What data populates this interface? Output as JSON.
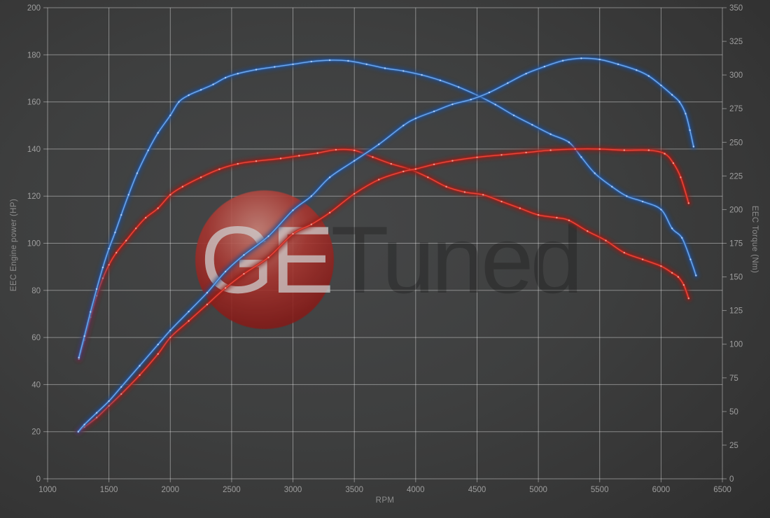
{
  "chart_data": {
    "type": "line",
    "title": "",
    "xlabel": "RPM",
    "ylabel_left": "EEC Engine power (HP)",
    "ylabel_right": "EEC Torque (Nm)",
    "xlim": [
      1000,
      6500
    ],
    "ylim_left": [
      0,
      200
    ],
    "ylim_right": [
      0,
      350
    ],
    "x_ticks": [
      1000,
      1500,
      2000,
      2500,
      3000,
      3500,
      4000,
      4500,
      5000,
      5500,
      6000,
      6500
    ],
    "y_left_ticks": [
      0,
      20,
      40,
      60,
      80,
      100,
      120,
      140,
      160,
      180,
      200
    ],
    "y_right_ticks": [
      0,
      25,
      50,
      75,
      100,
      125,
      150,
      175,
      200,
      225,
      250,
      275,
      300,
      325,
      350
    ],
    "grid": true,
    "legend": "none",
    "grid_color": "rgba(255,255,255,0.40)",
    "series": [
      {
        "name": "torque-red",
        "axis": "right",
        "unit": "Nm",
        "colors": {
          "core": "#e8483b",
          "mid": "#b2211c",
          "glow": "#8c1a16",
          "dot": "#f2aba0"
        },
        "points": [
          [
            1255,
            89
          ],
          [
            1300,
            103
          ],
          [
            1350,
            120
          ],
          [
            1400,
            136
          ],
          [
            1450,
            149
          ],
          [
            1500,
            159
          ],
          [
            1560,
            168
          ],
          [
            1640,
            177
          ],
          [
            1720,
            186
          ],
          [
            1800,
            194
          ],
          [
            1900,
            201
          ],
          [
            2000,
            211
          ],
          [
            2100,
            217
          ],
          [
            2250,
            224
          ],
          [
            2400,
            230
          ],
          [
            2550,
            234
          ],
          [
            2700,
            236
          ],
          [
            2900,
            238
          ],
          [
            3050,
            240
          ],
          [
            3200,
            242
          ],
          [
            3350,
            244.5
          ],
          [
            3500,
            244
          ],
          [
            3650,
            239
          ],
          [
            3800,
            234
          ],
          [
            3950,
            230
          ],
          [
            4100,
            224
          ],
          [
            4250,
            217
          ],
          [
            4400,
            213
          ],
          [
            4550,
            211
          ],
          [
            4700,
            206
          ],
          [
            4850,
            201
          ],
          [
            5000,
            196
          ],
          [
            5150,
            194
          ],
          [
            5250,
            192
          ],
          [
            5400,
            184
          ],
          [
            5550,
            177
          ],
          [
            5700,
            168
          ],
          [
            5850,
            163
          ],
          [
            6000,
            158
          ],
          [
            6090,
            153
          ],
          [
            6140,
            150
          ],
          [
            6185,
            144
          ],
          [
            6225,
            134
          ]
        ]
      },
      {
        "name": "torque-blue",
        "axis": "right",
        "unit": "Nm",
        "colors": {
          "core": "#6fa8ec",
          "mid": "#2d64ad",
          "glow": "#1d4a8c",
          "dot": "#bdd6f8"
        },
        "points": [
          [
            1255,
            90
          ],
          [
            1300,
            106
          ],
          [
            1350,
            124
          ],
          [
            1400,
            141
          ],
          [
            1450,
            157
          ],
          [
            1500,
            171
          ],
          [
            1550,
            183
          ],
          [
            1600,
            196
          ],
          [
            1660,
            211
          ],
          [
            1730,
            227
          ],
          [
            1820,
            244
          ],
          [
            1900,
            257
          ],
          [
            2000,
            270
          ],
          [
            2070,
            280
          ],
          [
            2150,
            285
          ],
          [
            2250,
            289
          ],
          [
            2350,
            293
          ],
          [
            2450,
            298
          ],
          [
            2550,
            301
          ],
          [
            2700,
            304
          ],
          [
            2850,
            306
          ],
          [
            3000,
            308
          ],
          [
            3150,
            310
          ],
          [
            3300,
            311
          ],
          [
            3450,
            310.5
          ],
          [
            3600,
            308
          ],
          [
            3750,
            305
          ],
          [
            3900,
            303
          ],
          [
            4050,
            300
          ],
          [
            4200,
            296
          ],
          [
            4350,
            291
          ],
          [
            4500,
            285
          ],
          [
            4650,
            278
          ],
          [
            4800,
            270
          ],
          [
            4950,
            263
          ],
          [
            5100,
            256
          ],
          [
            5250,
            250
          ],
          [
            5350,
            239
          ],
          [
            5460,
            227
          ],
          [
            5600,
            217
          ],
          [
            5720,
            210
          ],
          [
            5850,
            206
          ],
          [
            6000,
            200
          ],
          [
            6090,
            186
          ],
          [
            6170,
            179
          ],
          [
            6240,
            163
          ],
          [
            6285,
            151
          ]
        ]
      },
      {
        "name": "power-red",
        "axis": "left",
        "unit": "HP",
        "colors": {
          "core": "#e8483b",
          "mid": "#b2211c",
          "glow": "#8c1a16",
          "dot": "#f2aba0"
        },
        "points": [
          [
            1250,
            20
          ],
          [
            1300,
            22
          ],
          [
            1400,
            26
          ],
          [
            1500,
            31
          ],
          [
            1600,
            36
          ],
          [
            1750,
            44
          ],
          [
            1900,
            53
          ],
          [
            2000,
            60
          ],
          [
            2150,
            67
          ],
          [
            2300,
            74
          ],
          [
            2450,
            81
          ],
          [
            2600,
            87
          ],
          [
            2800,
            94
          ],
          [
            3000,
            104
          ],
          [
            3150,
            108
          ],
          [
            3300,
            113
          ],
          [
            3500,
            121
          ],
          [
            3700,
            127
          ],
          [
            3900,
            130.5
          ],
          [
            4000,
            131.5
          ],
          [
            4150,
            133.5
          ],
          [
            4300,
            135
          ],
          [
            4500,
            136.5
          ],
          [
            4700,
            137.5
          ],
          [
            4900,
            138.5
          ],
          [
            5100,
            139.5
          ],
          [
            5300,
            140
          ],
          [
            5500,
            140
          ],
          [
            5700,
            139.5
          ],
          [
            5900,
            139.5
          ],
          [
            6030,
            138
          ],
          [
            6100,
            134
          ],
          [
            6160,
            128
          ],
          [
            6225,
            117
          ]
        ]
      },
      {
        "name": "power-blue",
        "axis": "left",
        "unit": "HP",
        "colors": {
          "core": "#6fa8ec",
          "mid": "#2d64ad",
          "glow": "#1d4a8c",
          "dot": "#bdd6f8"
        },
        "points": [
          [
            1250,
            20
          ],
          [
            1300,
            23
          ],
          [
            1400,
            28
          ],
          [
            1500,
            33
          ],
          [
            1600,
            39
          ],
          [
            1750,
            48
          ],
          [
            1900,
            57
          ],
          [
            2000,
            63
          ],
          [
            2150,
            71
          ],
          [
            2300,
            79
          ],
          [
            2450,
            88
          ],
          [
            2600,
            95
          ],
          [
            2800,
            103
          ],
          [
            3000,
            114
          ],
          [
            3150,
            120
          ],
          [
            3300,
            128
          ],
          [
            3500,
            135
          ],
          [
            3700,
            142
          ],
          [
            3900,
            150
          ],
          [
            4000,
            153
          ],
          [
            4150,
            156
          ],
          [
            4300,
            159
          ],
          [
            4450,
            161
          ],
          [
            4600,
            164
          ],
          [
            4750,
            168
          ],
          [
            4900,
            172
          ],
          [
            5050,
            175
          ],
          [
            5200,
            177.5
          ],
          [
            5350,
            178.5
          ],
          [
            5500,
            178
          ],
          [
            5650,
            176
          ],
          [
            5800,
            173.5
          ],
          [
            5900,
            171
          ],
          [
            6000,
            167
          ],
          [
            6090,
            163
          ],
          [
            6150,
            160
          ],
          [
            6200,
            155
          ],
          [
            6235,
            148
          ],
          [
            6265,
            141
          ]
        ]
      }
    ]
  },
  "watermark": {
    "text_primary": "GE",
    "text_secondary": "Tuned",
    "circle_color": "#a2302a"
  }
}
